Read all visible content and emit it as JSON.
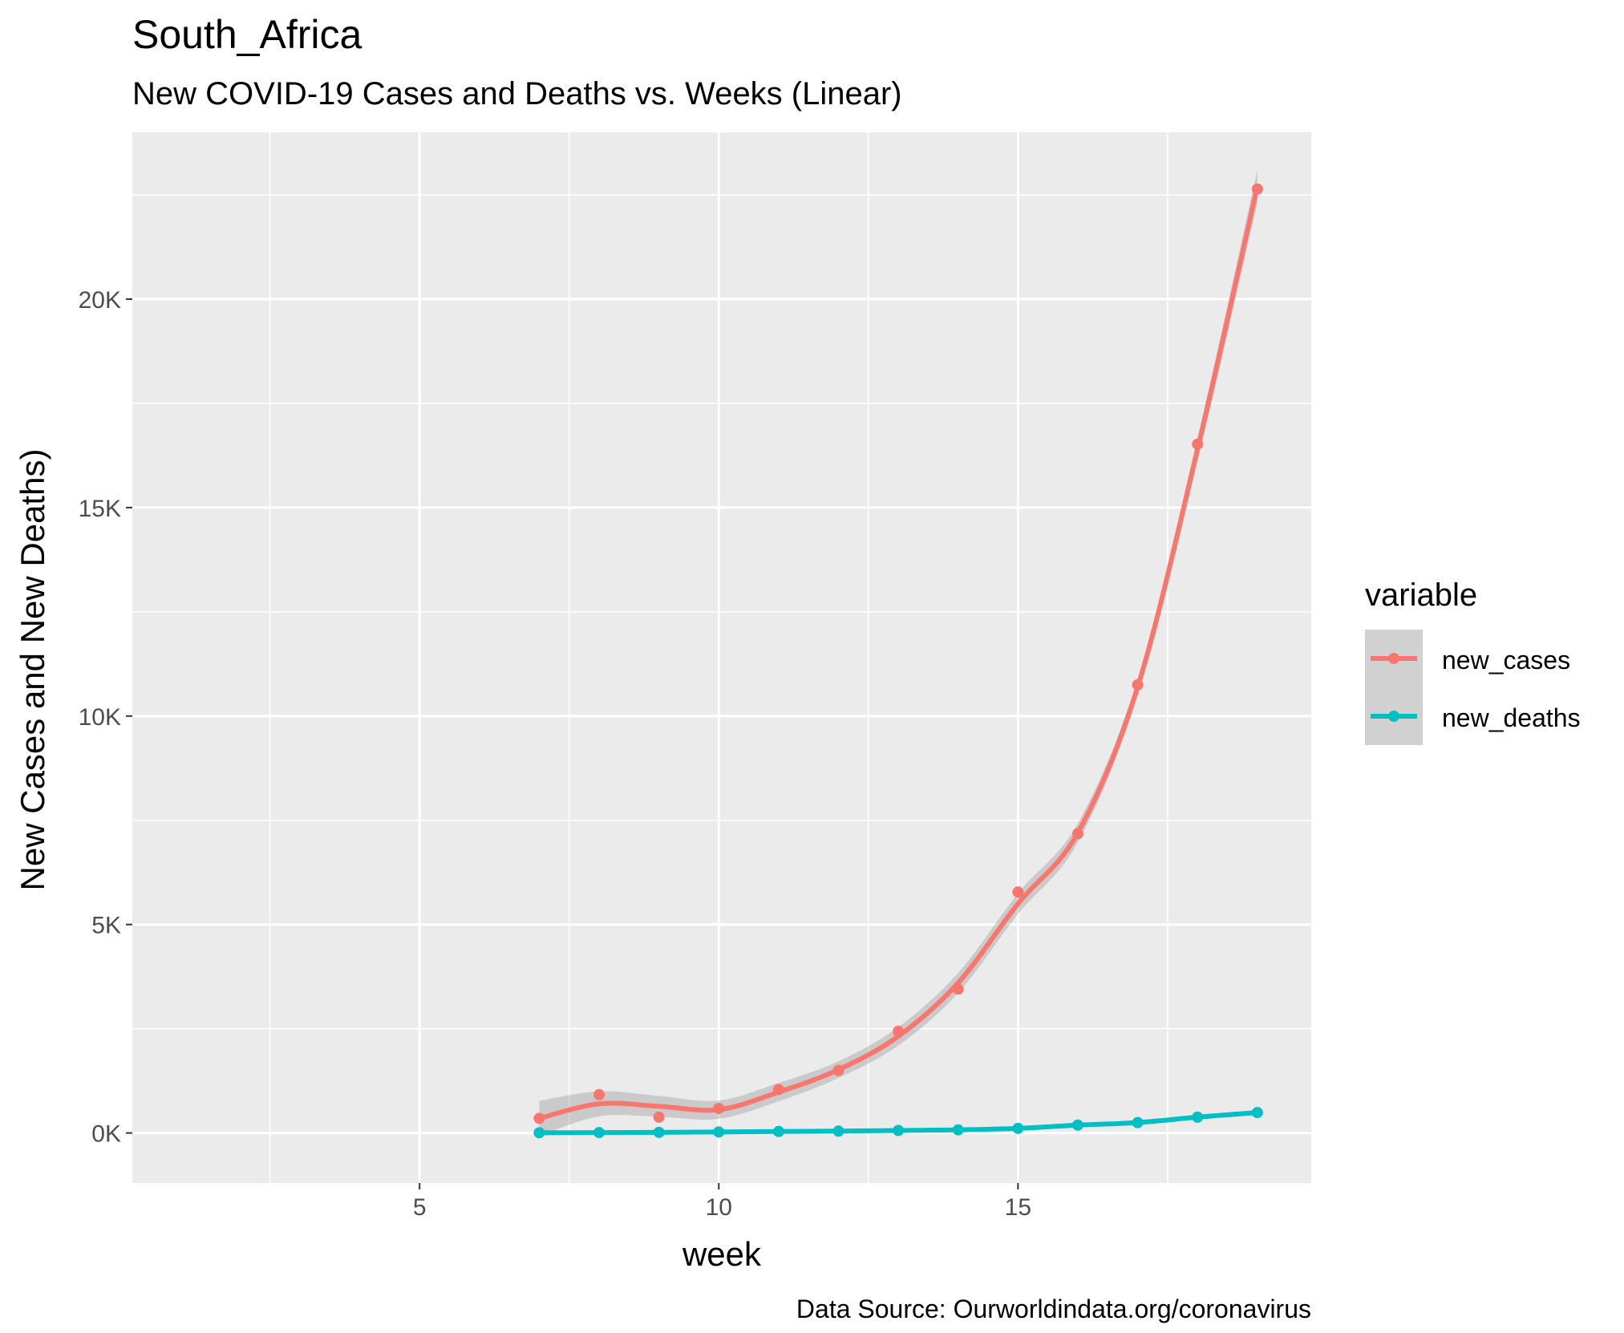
{
  "chart_data": {
    "type": "line",
    "title": "South_Africa",
    "subtitle": "New COVID-19 Cases and Deaths vs. Weeks (Linear)",
    "xlabel": "week",
    "ylabel": "New Cases and New Deaths)",
    "caption": "Data Source: Ourworldindata.org/coronavirus",
    "xlim": [
      0.2,
      19.9
    ],
    "ylim": [
      -1200,
      24000
    ],
    "x_ticks": [
      5,
      10,
      15
    ],
    "x_tick_labels": [
      "5",
      "10",
      "15"
    ],
    "y_ticks": [
      0,
      5000,
      10000,
      15000,
      20000
    ],
    "y_tick_labels": [
      "0K",
      "5K",
      "10K",
      "15K",
      "20K"
    ],
    "grid": true,
    "legend": {
      "title": "variable",
      "position": "right"
    },
    "x": [
      7,
      8,
      9,
      10,
      11,
      12,
      13,
      14,
      15,
      16,
      17,
      18,
      19
    ],
    "series": [
      {
        "name": "new_cases",
        "color": "#F8766D",
        "values": [
          350,
          920,
          380,
          590,
          1040,
          1500,
          2440,
          3450,
          5780,
          7180,
          10750,
          16520,
          22640
        ],
        "smooth": [
          350,
          700,
          640,
          560,
          980,
          1520,
          2320,
          3600,
          5500,
          7200,
          10700,
          16400,
          22700
        ],
        "band": [
          420,
          300,
          250,
          220,
          220,
          200,
          220,
          240,
          250,
          230,
          200,
          280,
          400
        ]
      },
      {
        "name": "new_deaths",
        "color": "#00BFC4",
        "values": [
          5,
          10,
          15,
          25,
          35,
          45,
          60,
          75,
          110,
          190,
          250,
          380,
          490
        ],
        "smooth": [
          5,
          10,
          15,
          25,
          35,
          45,
          60,
          75,
          110,
          190,
          250,
          380,
          490
        ]
      }
    ]
  }
}
